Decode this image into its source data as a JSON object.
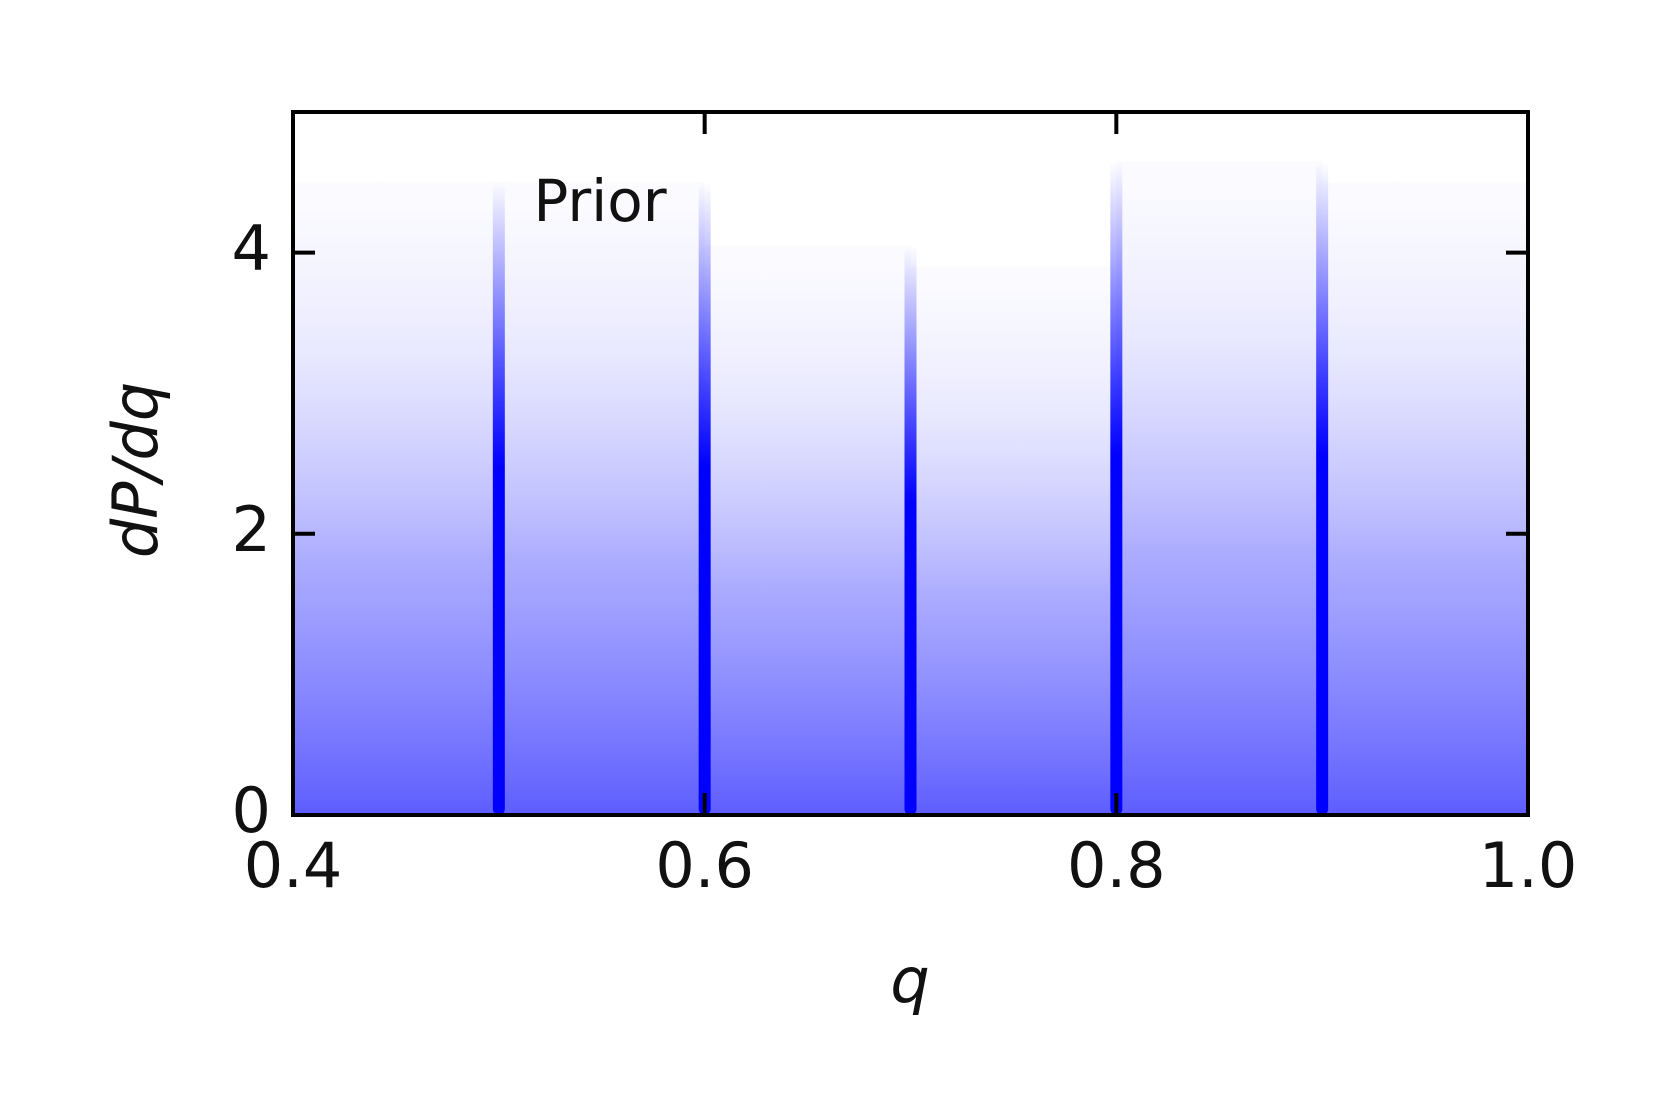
{
  "chart_data": {
    "type": "histogram",
    "annotation": "Prior",
    "x_label": "q",
    "y_label": "dP/dq",
    "bins": [
      0.4,
      0.5,
      0.6,
      0.7,
      0.8,
      0.9,
      1.0
    ],
    "values": [
      4.5,
      4.5,
      4.05,
      3.9,
      4.65,
      4.5
    ],
    "color": "#0000ff",
    "xlim": [
      0.4,
      1.0
    ],
    "xticks": [
      0.4,
      0.6,
      0.8,
      {
        "value": 1.0,
        "label": "1.0"
      }
    ],
    "ylim": [
      0,
      5
    ],
    "yticks": [
      0,
      2,
      4
    ]
  }
}
